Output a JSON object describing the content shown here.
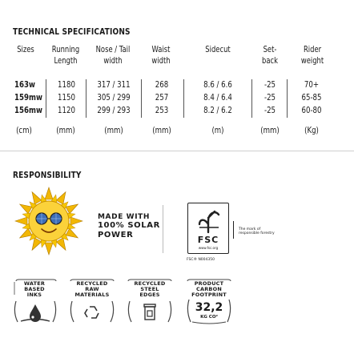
{
  "tech": {
    "title": "TECHNICAL SPECIFICATIONS",
    "headers": {
      "sizes": "Sizes",
      "running1": "Running",
      "running2": "Length",
      "nose1": "Nose / Tail",
      "nose2": "width",
      "waist1": "Waist",
      "waist2": "width",
      "sidecut": "Sidecut",
      "setback1": "Set-",
      "setback2": "back",
      "rider1": "Rider",
      "rider2": "weight"
    },
    "rows": [
      {
        "size": "163w",
        "running": "1180",
        "nose": "317 / 311",
        "waist": "268",
        "sidecut": "8.6 / 6.6",
        "setback": "-25",
        "rider": "70+"
      },
      {
        "size": "159mw",
        "running": "1150",
        "nose": "305 / 299",
        "waist": "257",
        "sidecut": "8.4 / 6.4",
        "setback": "-25",
        "rider": "65-85"
      },
      {
        "size": "156mw",
        "running": "1120",
        "nose": "299 / 293",
        "waist": "253",
        "sidecut": "8.2 / 6.2",
        "setback": "-25",
        "rider": "60-80"
      }
    ],
    "units": {
      "sizes": "(cm)",
      "running": "(mm)",
      "nose": "(mm)",
      "waist": "(mm)",
      "sidecut": "(m)",
      "setback": "(mm)",
      "rider": "(Kg)"
    }
  },
  "responsibility": {
    "title": "RESPONSIBILITY",
    "solar": {
      "line1": "MADE WITH",
      "line2": "100% SOLAR",
      "line3": "POWER"
    },
    "fsc": {
      "label": "FSC",
      "site": "www.fsc.org",
      "mark1": "The mark of",
      "mark2": "responsible forestry",
      "code": "FSC® N004350"
    },
    "badges": [
      {
        "l1": "WATER",
        "l2": "BASED",
        "l3": "INKS"
      },
      {
        "l1": "RECYCLED",
        "l2": "RAW",
        "l3": "MATERIALS"
      },
      {
        "l1": "RECYCLED",
        "l2": "STEEL",
        "l3": "EDGES"
      },
      {
        "l1": "PRODUCT",
        "l2": "CARBON",
        "l3": "FOOTPRINT",
        "value": "32,2",
        "unit": "KG CO²"
      }
    ]
  }
}
